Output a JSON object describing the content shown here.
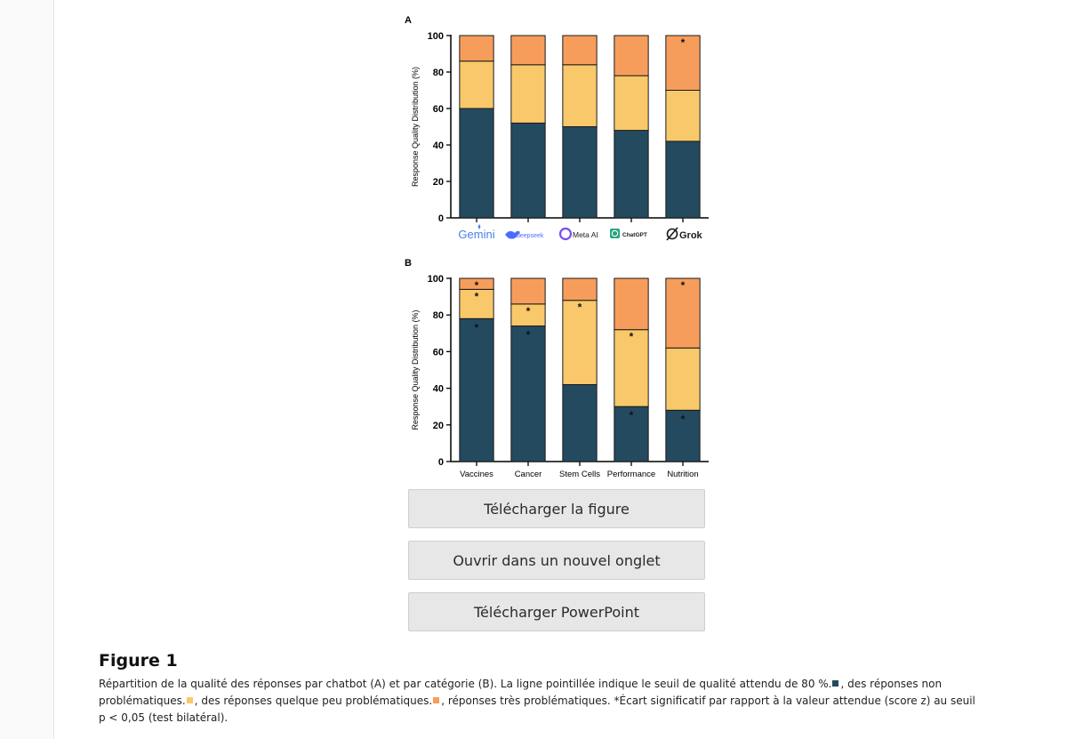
{
  "colors": {
    "non_problematic": "#244a5f",
    "somewhat_problematic": "#f9c86a",
    "very_problematic": "#f79d5c",
    "gemini": "#4a7ee8",
    "deepseek": "#4d6bfe",
    "meta": "#7b4bf0",
    "chatgpt": "#2aa37e"
  },
  "chart_data": [
    {
      "type": "bar",
      "stacked": true,
      "panel_label": "A",
      "ylabel": "Response Quality Distribution (%)",
      "ylim": [
        0,
        100
      ],
      "yticks": [
        "0",
        "20",
        "40",
        "60",
        "80",
        "100"
      ],
      "categories": [
        "Gemini",
        "deepseek",
        "Meta AI",
        "ChatGPT",
        "Grok"
      ],
      "series": [
        {
          "name": "non problematic",
          "values": [
            60,
            52,
            50,
            48,
            42
          ]
        },
        {
          "name": "somewhat problematic",
          "values": [
            26,
            32,
            34,
            30,
            28
          ]
        },
        {
          "name": "very problematic",
          "values": [
            14,
            16,
            16,
            22,
            30
          ]
        }
      ],
      "significance_marks": [
        {
          "category": "Grok",
          "series": "very problematic",
          "label": "*"
        }
      ]
    },
    {
      "type": "bar",
      "stacked": true,
      "panel_label": "B",
      "ylabel": "Response Quality Distribution (%)",
      "ylim": [
        0,
        100
      ],
      "yticks": [
        "0",
        "20",
        "40",
        "60",
        "80",
        "100"
      ],
      "categories": [
        "Vaccines",
        "Cancer",
        "Stem Cells",
        "Performance",
        "Nutrition"
      ],
      "series": [
        {
          "name": "non problematic",
          "values": [
            78,
            74,
            42,
            30,
            28
          ]
        },
        {
          "name": "somewhat problematic",
          "values": [
            16,
            12,
            46,
            42,
            34
          ]
        },
        {
          "name": "very problematic",
          "values": [
            6,
            14,
            12,
            28,
            38
          ]
        }
      ],
      "significance_marks": [
        {
          "category": "Vaccines",
          "series": "non problematic",
          "label": "*"
        },
        {
          "category": "Vaccines",
          "series": "somewhat problematic",
          "label": "*"
        },
        {
          "category": "Vaccines",
          "series": "very problematic",
          "label": "*"
        },
        {
          "category": "Cancer",
          "series": "non problematic",
          "label": "*"
        },
        {
          "category": "Cancer",
          "series": "somewhat problematic",
          "label": "*"
        },
        {
          "category": "Stem Cells",
          "series": "somewhat problematic",
          "label": "*"
        },
        {
          "category": "Performance",
          "series": "non problematic",
          "label": "*"
        },
        {
          "category": "Performance",
          "series": "somewhat problematic",
          "label": "*"
        },
        {
          "category": "Nutrition",
          "series": "non problematic",
          "label": "*"
        },
        {
          "category": "Nutrition",
          "series": "very problematic",
          "label": "*"
        }
      ]
    }
  ],
  "logos": {
    "gemini": "Gemini",
    "deepseek": "deepseek",
    "meta": "Meta AI",
    "chatgpt": "ChatGPT",
    "grok": "Grok"
  },
  "buttons": {
    "download": "Télécharger la figure",
    "open": "Ouvrir dans un nouvel onglet",
    "ppt": "Télécharger PowerPoint"
  },
  "caption": {
    "title": "Figure 1",
    "part1": "Répartition de la qualité des réponses par chatbot (A) et par catégorie (B). La ligne pointillée indique le seuil de qualité attendu de 80 %.",
    "part2": ", des réponses non problématiques.",
    "part3": ", des réponses quelque peu problématiques.",
    "part4": ", réponses très problématiques. *Écart significatif par rapport à la valeur attendue (score z) au seuil p < 0,05 (test bilatéral)."
  }
}
